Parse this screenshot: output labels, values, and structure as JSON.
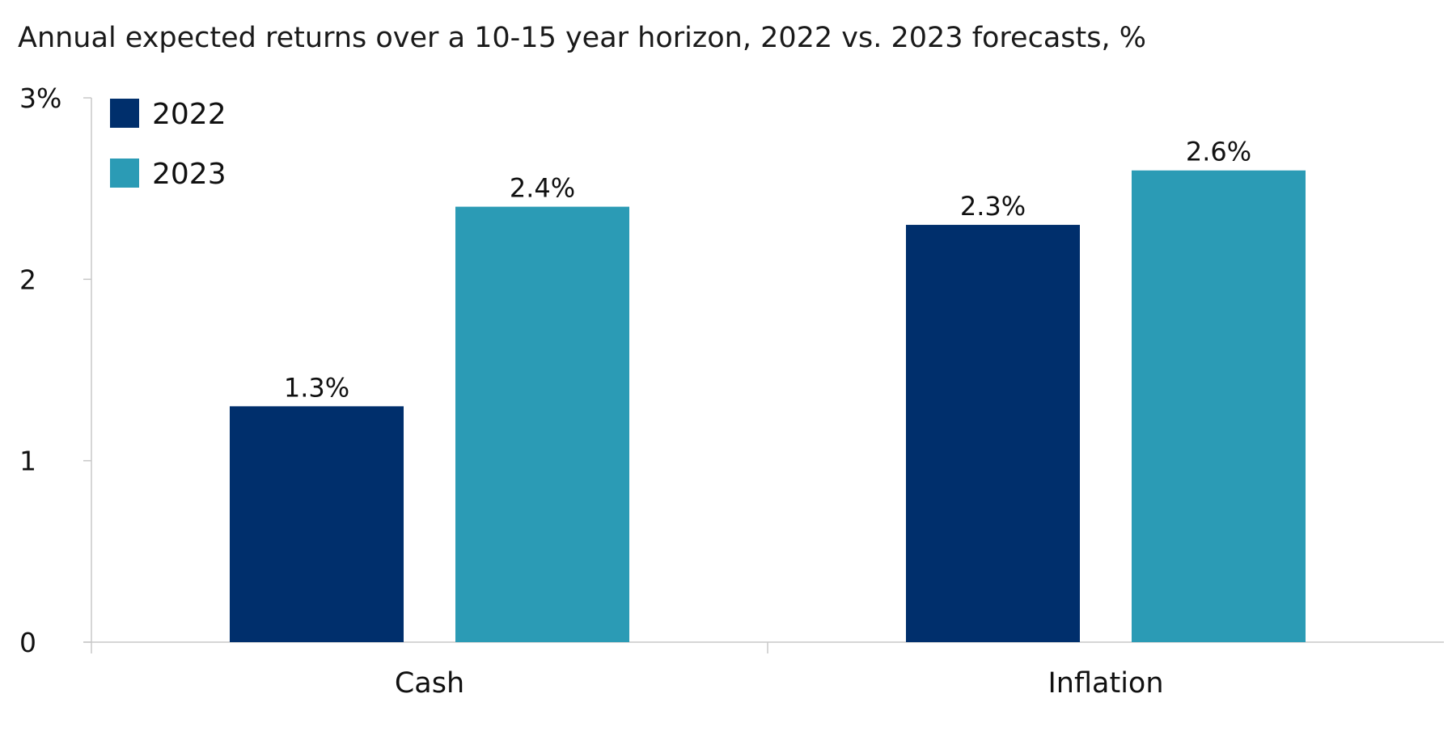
{
  "chart_data": {
    "type": "bar",
    "title": "Annual expected returns over a 10-15 year horizon, 2022 vs. 2023 forecasts, %",
    "categories": [
      "Cash",
      "Inflation"
    ],
    "series": [
      {
        "name": "2022",
        "values": [
          1.3,
          2.3
        ],
        "color": "#002f6c",
        "labels": [
          "1.3%",
          "2.3%"
        ]
      },
      {
        "name": "2023",
        "values": [
          2.4,
          2.6
        ],
        "color": "#2b9bb5",
        "labels": [
          "2.4%",
          "2.6%"
        ]
      }
    ],
    "ylim": [
      0,
      3
    ],
    "yticks": [
      0,
      1,
      2,
      3
    ],
    "ytick_labels": [
      "0",
      "1",
      "2",
      "3%"
    ],
    "xlabel": "",
    "ylabel": "",
    "grid": false,
    "legend": "top-left"
  }
}
